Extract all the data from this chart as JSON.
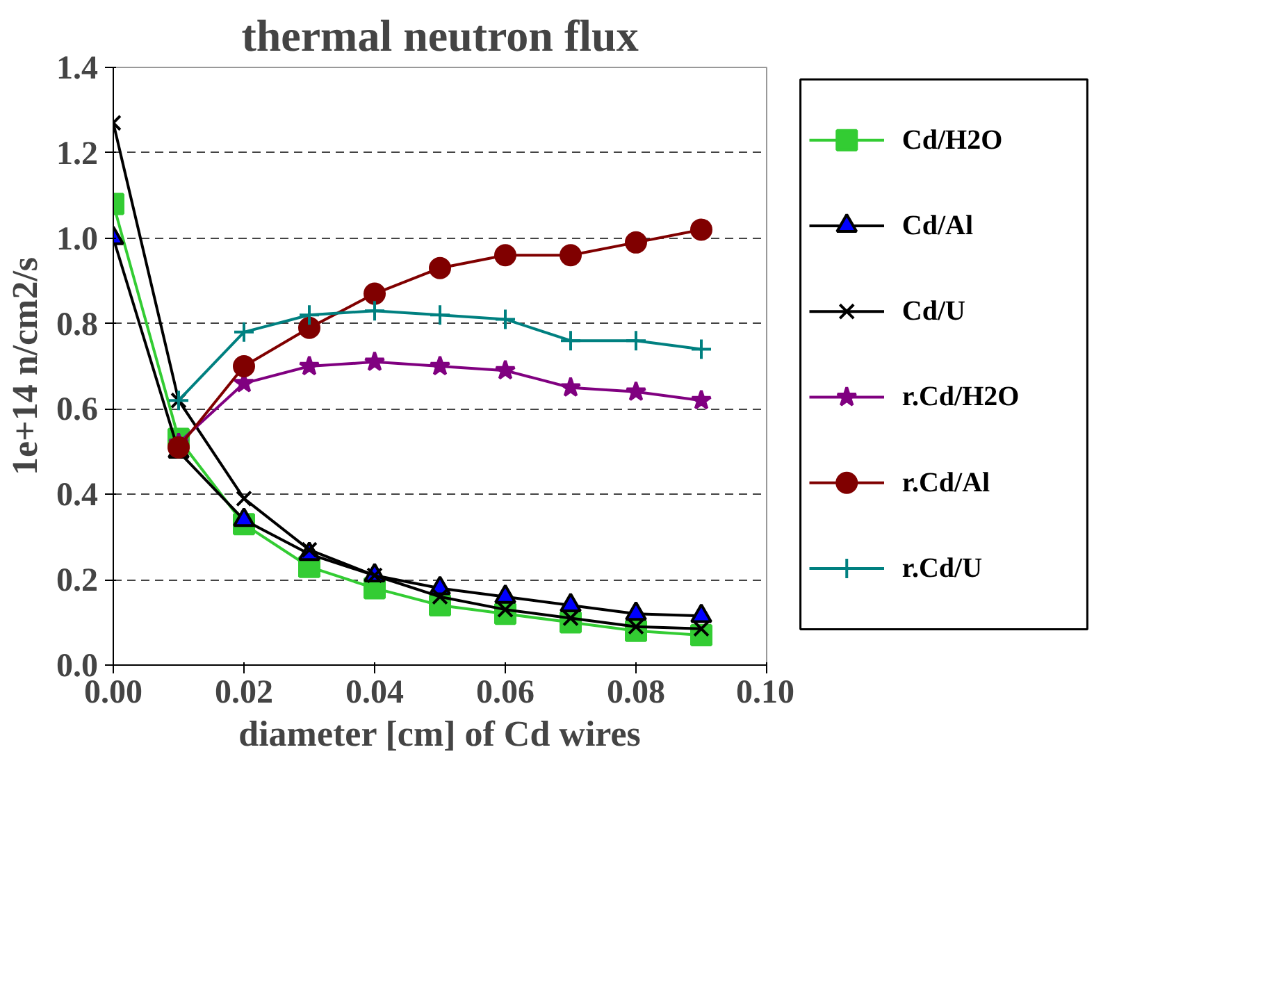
{
  "chart_data": {
    "type": "line",
    "title": "thermal neutron flux",
    "xlabel": "diameter [cm] of Cd wires",
    "ylabel": "1e+14 n/cm2/s",
    "xlim": [
      0,
      0.1
    ],
    "ylim": [
      0,
      1.4
    ],
    "xticks": [
      {
        "value": 0,
        "label": "0.00"
      },
      {
        "value": 0.02,
        "label": "0.02"
      },
      {
        "value": 0.04,
        "label": "0.04"
      },
      {
        "value": 0.06,
        "label": "0.06"
      },
      {
        "value": 0.08,
        "label": "0.08"
      },
      {
        "value": 0.1,
        "label": "0.10"
      }
    ],
    "yticks": [
      {
        "value": 0,
        "label": "0.0"
      },
      {
        "value": 0.2,
        "label": "0.2"
      },
      {
        "value": 0.4,
        "label": "0.4"
      },
      {
        "value": 0.6,
        "label": "0.6"
      },
      {
        "value": 0.8,
        "label": "0.8"
      },
      {
        "value": 1.0,
        "label": "1.0"
      },
      {
        "value": 1.2,
        "label": "1.2"
      },
      {
        "value": 1.4,
        "label": "1.4"
      }
    ],
    "grid": "y",
    "legend": "right",
    "series": [
      {
        "name": "Cd/H2O",
        "color": "#33cc33",
        "marker": "square",
        "x": [
          0,
          0.01,
          0.02,
          0.03,
          0.04,
          0.05,
          0.06,
          0.07,
          0.08,
          0.09
        ],
        "values": [
          1.08,
          0.53,
          0.33,
          0.23,
          0.18,
          0.14,
          0.12,
          0.1,
          0.08,
          0.07
        ]
      },
      {
        "name": "Cd/Al",
        "color": "#000000",
        "marker": "triangle",
        "x": [
          0,
          0.01,
          0.02,
          0.03,
          0.04,
          0.05,
          0.06,
          0.07,
          0.08,
          0.09
        ],
        "values": [
          1.0,
          0.5,
          0.34,
          0.26,
          0.21,
          0.18,
          0.16,
          0.14,
          0.12,
          0.115
        ]
      },
      {
        "name": "Cd/U",
        "color": "#000000",
        "marker": "x",
        "x": [
          0,
          0.01,
          0.02,
          0.03,
          0.04,
          0.05,
          0.06,
          0.07,
          0.08,
          0.09
        ],
        "values": [
          1.27,
          0.62,
          0.39,
          0.27,
          0.21,
          0.16,
          0.13,
          0.11,
          0.09,
          0.085
        ]
      },
      {
        "name": "r.Cd/H2O",
        "color": "#800080",
        "marker": "star",
        "x": [
          0.01,
          0.02,
          0.03,
          0.04,
          0.05,
          0.06,
          0.07,
          0.08,
          0.09
        ],
        "values": [
          0.52,
          0.66,
          0.7,
          0.71,
          0.7,
          0.69,
          0.65,
          0.64,
          0.62
        ]
      },
      {
        "name": "r.Cd/Al",
        "color": "#800000",
        "marker": "circle",
        "x": [
          0.01,
          0.02,
          0.03,
          0.04,
          0.05,
          0.06,
          0.07,
          0.08,
          0.09
        ],
        "values": [
          0.51,
          0.7,
          0.79,
          0.87,
          0.93,
          0.96,
          0.96,
          0.99,
          1.02
        ]
      },
      {
        "name": "r.Cd/U",
        "color": "#008080",
        "marker": "cross",
        "x": [
          0.01,
          0.02,
          0.03,
          0.04,
          0.05,
          0.06,
          0.07,
          0.08,
          0.09
        ],
        "values": [
          0.62,
          0.78,
          0.82,
          0.83,
          0.82,
          0.81,
          0.76,
          0.76,
          0.74
        ]
      }
    ]
  }
}
